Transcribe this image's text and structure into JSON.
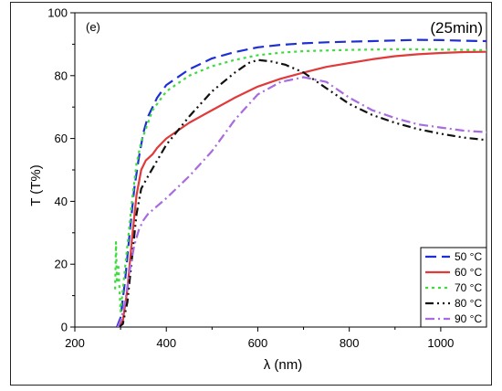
{
  "chart_data": {
    "type": "line",
    "panel_label": "(e)",
    "annotation": "(25min)",
    "xlabel": "λ (nm)",
    "ylabel": "T (T%)",
    "xlim": [
      200,
      1100
    ],
    "ylim": [
      0,
      100
    ],
    "xticks": [
      200,
      400,
      600,
      800,
      1000
    ],
    "yticks": [
      0,
      20,
      40,
      60,
      80,
      100
    ],
    "grid": false,
    "legend_position": "bottom-right",
    "series": [
      {
        "name": "50 °C",
        "color": "#1f2fd6",
        "dash": "12,6",
        "points": [
          [
            292,
            0
          ],
          [
            300,
            3
          ],
          [
            310,
            15
          ],
          [
            320,
            30
          ],
          [
            330,
            44
          ],
          [
            340,
            54
          ],
          [
            350,
            62
          ],
          [
            360,
            67
          ],
          [
            380,
            73
          ],
          [
            400,
            77
          ],
          [
            450,
            82
          ],
          [
            500,
            85.5
          ],
          [
            550,
            87.5
          ],
          [
            600,
            89
          ],
          [
            650,
            89.8
          ],
          [
            700,
            90.3
          ],
          [
            750,
            90.6
          ],
          [
            800,
            90.8
          ],
          [
            850,
            91
          ],
          [
            900,
            91.2
          ],
          [
            950,
            91.4
          ],
          [
            1000,
            91.3
          ],
          [
            1050,
            91.1
          ],
          [
            1100,
            91
          ]
        ]
      },
      {
        "name": "60 °C",
        "color": "#e03a3a",
        "dash": "",
        "points": [
          [
            295,
            0
          ],
          [
            305,
            2
          ],
          [
            315,
            12
          ],
          [
            325,
            28
          ],
          [
            335,
            42
          ],
          [
            345,
            50
          ],
          [
            355,
            53
          ],
          [
            370,
            55
          ],
          [
            380,
            57
          ],
          [
            400,
            60
          ],
          [
            450,
            65
          ],
          [
            500,
            69
          ],
          [
            550,
            73
          ],
          [
            600,
            76.5
          ],
          [
            650,
            79
          ],
          [
            700,
            81
          ],
          [
            750,
            82.8
          ],
          [
            800,
            84
          ],
          [
            850,
            85.2
          ],
          [
            900,
            86.2
          ],
          [
            950,
            86.8
          ],
          [
            1000,
            87.2
          ],
          [
            1050,
            87.5
          ],
          [
            1100,
            87.6
          ]
        ]
      },
      {
        "name": "70 °C",
        "color": "#3ddc3d",
        "dash": "3,4",
        "points": [
          [
            288,
            12
          ],
          [
            290,
            27
          ],
          [
            292,
            14
          ],
          [
            295,
            20
          ],
          [
            300,
            5
          ],
          [
            305,
            12
          ],
          [
            315,
            26
          ],
          [
            325,
            40
          ],
          [
            335,
            52
          ],
          [
            345,
            59
          ],
          [
            355,
            63
          ],
          [
            370,
            69
          ],
          [
            400,
            75
          ],
          [
            450,
            80
          ],
          [
            500,
            83
          ],
          [
            550,
            85
          ],
          [
            600,
            86.5
          ],
          [
            650,
            87.3
          ],
          [
            700,
            87.8
          ],
          [
            800,
            88.2
          ],
          [
            900,
            88.4
          ],
          [
            1000,
            88.3
          ],
          [
            1100,
            88.1
          ]
        ]
      },
      {
        "name": "80 °C",
        "color": "#111111",
        "dash": "9,4,2,4,2,4",
        "points": [
          [
            296,
            0
          ],
          [
            305,
            1
          ],
          [
            315,
            8
          ],
          [
            325,
            22
          ],
          [
            335,
            36
          ],
          [
            345,
            44
          ],
          [
            360,
            48
          ],
          [
            380,
            53
          ],
          [
            400,
            58
          ],
          [
            450,
            67
          ],
          [
            500,
            75
          ],
          [
            550,
            81
          ],
          [
            580,
            84
          ],
          [
            600,
            85
          ],
          [
            630,
            84.5
          ],
          [
            660,
            83.5
          ],
          [
            700,
            81
          ],
          [
            750,
            76
          ],
          [
            800,
            71
          ],
          [
            850,
            67.5
          ],
          [
            900,
            65
          ],
          [
            950,
            63
          ],
          [
            1000,
            61.5
          ],
          [
            1050,
            60.3
          ],
          [
            1100,
            59.5
          ]
        ]
      },
      {
        "name": "90 °C",
        "color": "#a86be0",
        "dash": "10,4,2,4",
        "points": [
          [
            294,
            0
          ],
          [
            300,
            2
          ],
          [
            310,
            8
          ],
          [
            320,
            18
          ],
          [
            330,
            26
          ],
          [
            340,
            31
          ],
          [
            350,
            34
          ],
          [
            360,
            36
          ],
          [
            380,
            38.5
          ],
          [
            400,
            41
          ],
          [
            450,
            48
          ],
          [
            500,
            56
          ],
          [
            550,
            66
          ],
          [
            600,
            74
          ],
          [
            650,
            78
          ],
          [
            700,
            79.5
          ],
          [
            750,
            78
          ],
          [
            800,
            73
          ],
          [
            850,
            69
          ],
          [
            900,
            66.5
          ],
          [
            950,
            64.5
          ],
          [
            1000,
            63.5
          ],
          [
            1050,
            62.5
          ],
          [
            1100,
            62
          ]
        ]
      }
    ]
  }
}
